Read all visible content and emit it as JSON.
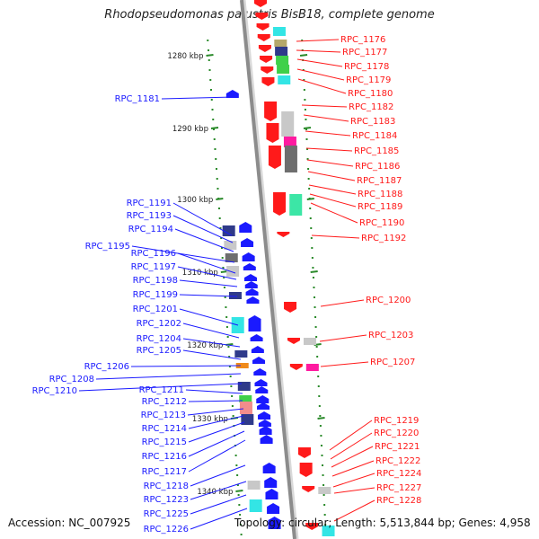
{
  "title": "Rhodopseudomonas palustris BisB18, complete genome",
  "accession": "Accession: NC_007925",
  "topology": "Topology: circular; Length: 5,513,844 bp; Genes: 4,958",
  "colors": {
    "forward_strand": "#1a1aff",
    "reverse_strand": "#ff1a1a",
    "backbone": "#8c8c8c",
    "tick": "#2a8a2a",
    "cog_cyan": "#33e5e5",
    "cog_green": "#3fd04a",
    "cog_navy": "#2f3a8a",
    "cog_magenta": "#ff1aa0",
    "cog_pink": "#f28c8c",
    "cog_grey_dark": "#6e6e6e",
    "cog_grey_light": "#c8c8c8",
    "cog_mint": "#3ce6a6",
    "cog_orange": "#f08a1a",
    "cog_olive": "#b5a86a"
  },
  "scale": {
    "unit": "kbp",
    "labels": [
      "1280 kbp",
      "1290 kbp",
      "1300 kbp",
      "1310 kbp",
      "1320 kbp",
      "1330 kbp",
      "1340 kbp"
    ]
  },
  "forward_genes": {
    "labels": [
      "RPC_1181",
      "RPC_1191",
      "RPC_1193",
      "RPC_1194",
      "RPC_1195",
      "RPC_1196",
      "RPC_1197",
      "RPC_1198",
      "RPC_1199",
      "RPC_1201",
      "RPC_1202",
      "RPC_1204",
      "RPC_1205",
      "RPC_1206",
      "RPC_1208",
      "RPC_1210",
      "RPC_1211",
      "RPC_1212",
      "RPC_1213",
      "RPC_1214",
      "RPC_1215",
      "RPC_1216",
      "RPC_1217",
      "RPC_1218",
      "RPC_1223",
      "RPC_1225",
      "RPC_1226"
    ]
  },
  "reverse_genes": {
    "labels": [
      "RPC_1176",
      "RPC_1177",
      "RPC_1178",
      "RPC_1179",
      "RPC_1180",
      "RPC_1182",
      "RPC_1183",
      "RPC_1184",
      "RPC_1185",
      "RPC_1186",
      "RPC_1187",
      "RPC_1188",
      "RPC_1189",
      "RPC_1190",
      "RPC_1192",
      "RPC_1200",
      "RPC_1203",
      "RPC_1207",
      "RPC_1219",
      "RPC_1220",
      "RPC_1221",
      "RPC_1222",
      "RPC_1224",
      "RPC_1227",
      "RPC_1228"
    ]
  }
}
